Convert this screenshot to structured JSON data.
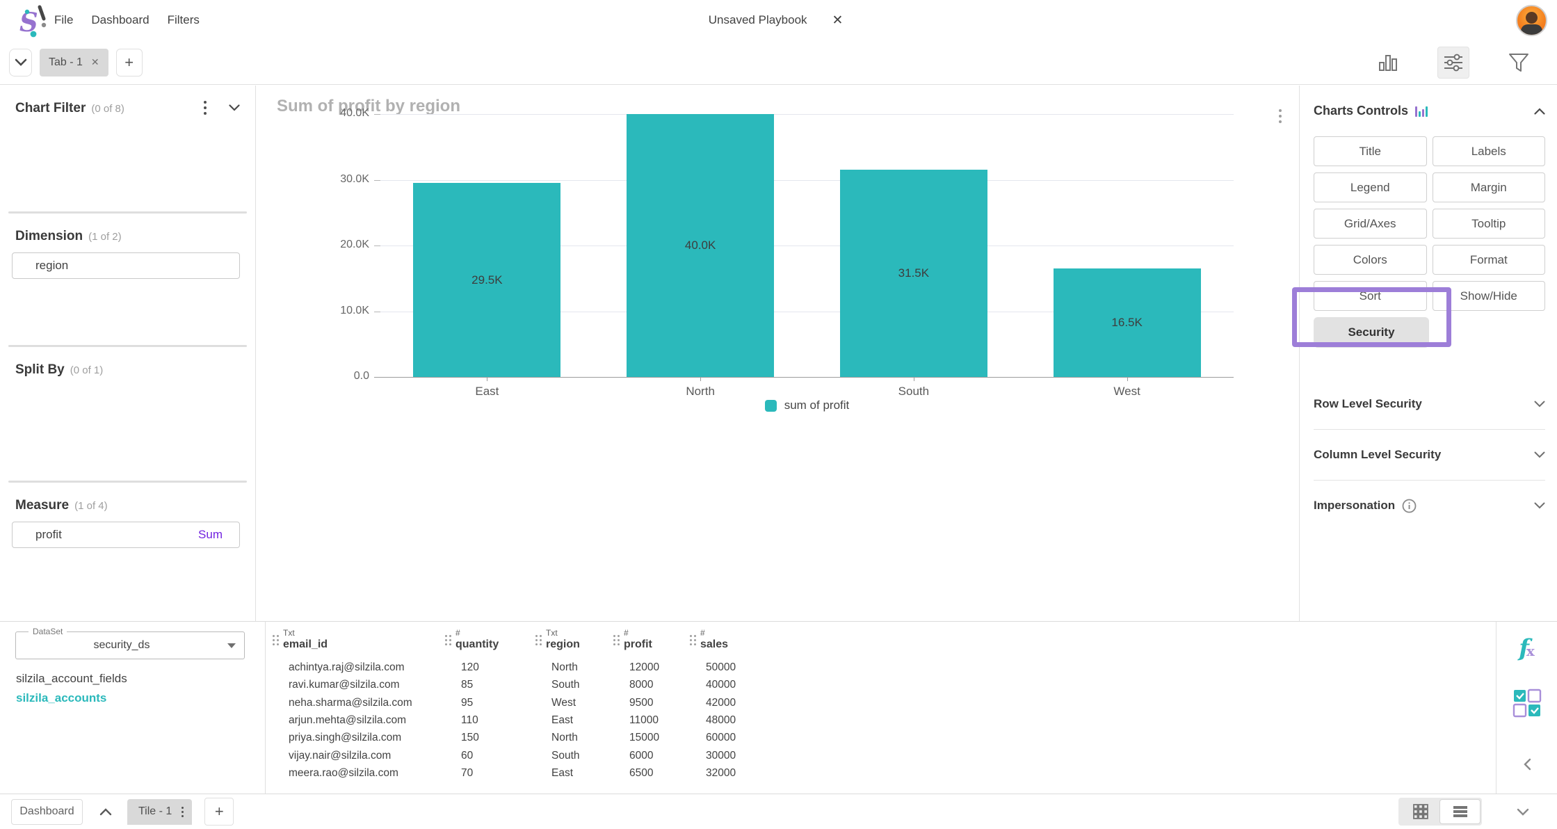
{
  "topbar": {
    "menus": [
      "File",
      "Dashboard",
      "Filters"
    ],
    "playbook_title": "Unsaved Playbook"
  },
  "tabbar": {
    "tab_label": "Tab - 1"
  },
  "left_panel": {
    "sections": [
      {
        "title": "Chart Filter",
        "count": "(0 of 8)"
      },
      {
        "title": "Dimension",
        "count": "(1 of 2)",
        "chips": [
          {
            "label": "region"
          }
        ]
      },
      {
        "title": "Split By",
        "count": "(0 of 1)"
      },
      {
        "title": "Measure",
        "count": "(1 of 4)",
        "chips": [
          {
            "label": "profit",
            "agg": "Sum"
          }
        ]
      }
    ]
  },
  "chart_data": {
    "type": "bar",
    "title": "Sum of profit by region",
    "categories": [
      "East",
      "North",
      "South",
      "West"
    ],
    "values": [
      29500,
      40000,
      31500,
      16500
    ],
    "bar_labels": [
      "29.5K",
      "40.0K",
      "31.5K",
      "16.5K"
    ],
    "y_ticks": [
      "0.0",
      "10.0K",
      "20.0K",
      "30.0K",
      "40.0K"
    ],
    "ylim": [
      0,
      40000
    ],
    "xlabel": "",
    "ylabel": "",
    "legend": "sum of profit",
    "legend_position": "bottom",
    "grid": "horizontal",
    "bar_color": "#2bb9bb"
  },
  "right_panel": {
    "header": "Charts Controls",
    "buttons": [
      "Title",
      "Labels",
      "Legend",
      "Margin",
      "Grid/Axes",
      "Tooltip",
      "Colors",
      "Format",
      "Sort",
      "Show/Hide"
    ],
    "security_button": "Security",
    "accordions": [
      {
        "label": "Row Level Security",
        "info": false
      },
      {
        "label": "Column Level Security",
        "info": false
      },
      {
        "label": "Impersonation",
        "info": true
      }
    ]
  },
  "bottom_panel": {
    "dataset_label": "DataSet",
    "dataset_value": "security_ds",
    "tables": [
      {
        "name": "silzila_account_fields",
        "selected": false
      },
      {
        "name": "silzila_accounts",
        "selected": true
      }
    ],
    "data_table": {
      "columns": [
        {
          "type": "Txt",
          "name": "email_id"
        },
        {
          "type": "#",
          "name": "quantity"
        },
        {
          "type": "Txt",
          "name": "region"
        },
        {
          "type": "#",
          "name": "profit"
        },
        {
          "type": "#",
          "name": "sales"
        }
      ],
      "rows": [
        [
          "achintya.raj@silzila.com",
          "120",
          "North",
          "12000",
          "50000"
        ],
        [
          "ravi.kumar@silzila.com",
          "85",
          "South",
          "8000",
          "40000"
        ],
        [
          "neha.sharma@silzila.com",
          "95",
          "West",
          "9500",
          "42000"
        ],
        [
          "arjun.mehta@silzila.com",
          "110",
          "East",
          "11000",
          "48000"
        ],
        [
          "priya.singh@silzila.com",
          "150",
          "North",
          "15000",
          "60000"
        ],
        [
          "vijay.nair@silzila.com",
          "60",
          "South",
          "6000",
          "30000"
        ],
        [
          "meera.rao@silzila.com",
          "70",
          "East",
          "6500",
          "32000"
        ]
      ]
    }
  },
  "bottombar": {
    "dashboard_label": "Dashboard",
    "tile_label": "Tile - 1"
  },
  "colors": {
    "accent_teal": "#2bb9bb",
    "accent_purple": "#7223e0",
    "highlight_purple": "#9d7ed8"
  }
}
